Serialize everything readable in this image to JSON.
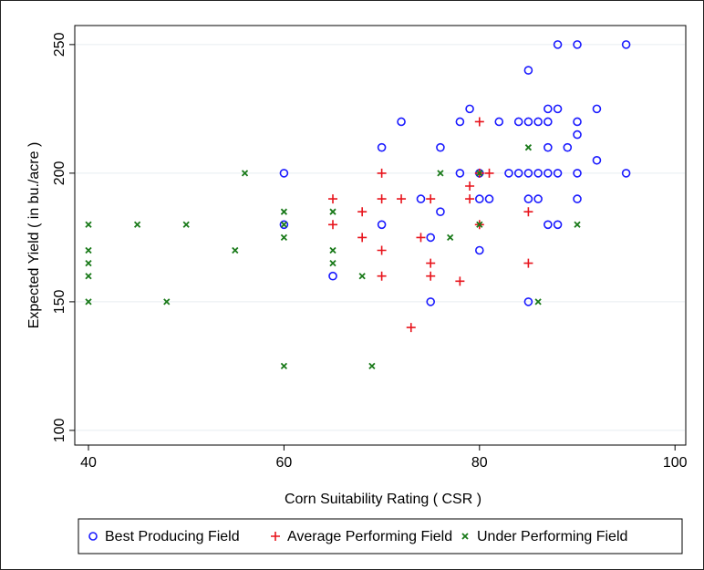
{
  "chart_data": {
    "type": "scatter",
    "x_label": "Corn Suitability Rating ( CSR )",
    "y_label": "Expected Yield ( in bu./acre )",
    "xlim": [
      38.6,
      101.1
    ],
    "ylim": [
      94.3,
      257.4
    ],
    "xticks": [
      40,
      60,
      80,
      100
    ],
    "yticks": [
      100,
      150,
      200,
      250
    ],
    "grid": true,
    "legend": "bottom",
    "series": [
      {
        "name": "Best Producing Field",
        "color": "#1a1aff",
        "marker": "circle",
        "x": [
          60,
          60,
          65,
          70,
          70,
          72,
          74,
          75,
          75,
          76,
          76,
          78,
          78,
          79,
          80,
          80,
          80,
          81,
          82,
          83,
          84,
          84,
          85,
          85,
          85,
          85,
          85,
          86,
          86,
          86,
          87,
          87,
          87,
          87,
          87,
          88,
          88,
          88,
          88,
          89,
          90,
          90,
          90,
          90,
          90,
          92,
          92,
          95,
          95
        ],
        "values": [
          200,
          180,
          160,
          210,
          180,
          220,
          190,
          175,
          150,
          210,
          185,
          220,
          200,
          225,
          200,
          190,
          170,
          190,
          220,
          200,
          220,
          200,
          240,
          220,
          200,
          190,
          150,
          220,
          200,
          190,
          225,
          220,
          210,
          200,
          180,
          250,
          225,
          200,
          180,
          210,
          250,
          220,
          215,
          200,
          190,
          225,
          205,
          250,
          200
        ]
      },
      {
        "name": "Average Performing Field",
        "color": "#e8141c",
        "marker": "plus",
        "x": [
          65,
          65,
          68,
          68,
          70,
          70,
          70,
          70,
          72,
          73,
          74,
          75,
          75,
          75,
          78,
          79,
          79,
          80,
          80,
          80,
          81,
          85,
          85
        ],
        "values": [
          190,
          180,
          185,
          175,
          200,
          190,
          170,
          160,
          190,
          140,
          175,
          190,
          165,
          160,
          158,
          195,
          190,
          220,
          200,
          180,
          200,
          185,
          165
        ]
      },
      {
        "name": "Under Performing Field",
        "color": "#1a7a1a",
        "marker": "x",
        "x": [
          40,
          40,
          40,
          40,
          40,
          45,
          48,
          50,
          55,
          56,
          60,
          60,
          60,
          60,
          65,
          65,
          65,
          68,
          69,
          76,
          77,
          80,
          80,
          85,
          86,
          90
        ],
        "values": [
          180,
          170,
          165,
          160,
          150,
          180,
          150,
          180,
          170,
          200,
          185,
          180,
          175,
          125,
          185,
          170,
          165,
          160,
          125,
          200,
          175,
          200,
          180,
          210,
          150,
          180
        ]
      }
    ]
  }
}
